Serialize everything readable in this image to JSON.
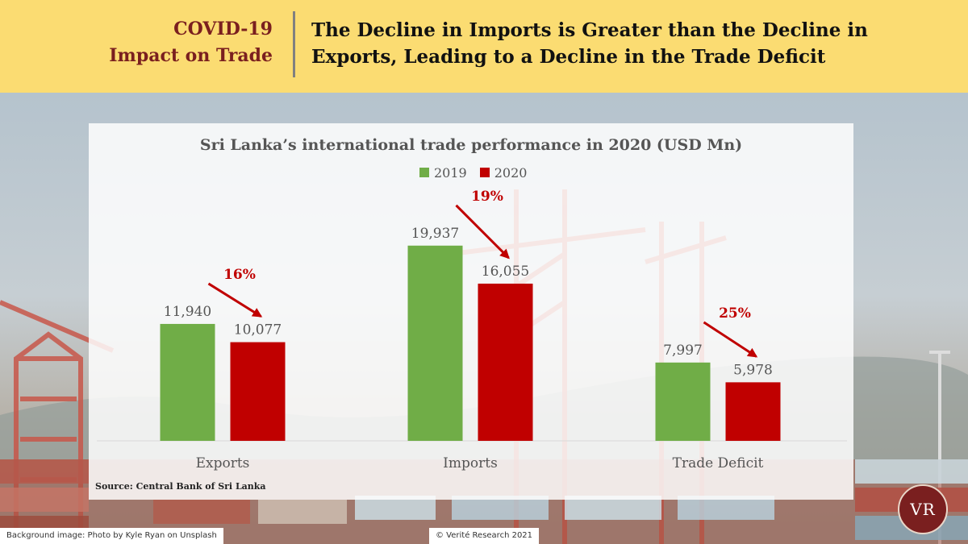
{
  "header": {
    "tag_line1": "COVID-19",
    "tag_line2": "Impact on Trade",
    "headline": "The Decline in Imports is Greater than the Decline in Exports, Leading to a Decline in the Trade Deficit"
  },
  "chart_data": {
    "type": "bar",
    "title": "Sri Lanka’s international trade performance in 2020 (USD Mn)",
    "categories": [
      "Exports",
      "Imports",
      "Trade Deficit"
    ],
    "series": [
      {
        "name": "2019",
        "values": [
          11940,
          19937,
          7997
        ],
        "labels": [
          "11,940",
          "19,937",
          "7,997"
        ],
        "color": "#70ad47"
      },
      {
        "name": "2020",
        "values": [
          10077,
          16055,
          5978
        ],
        "labels": [
          "10,077",
          "16,055",
          "5,978"
        ],
        "color": "#c00000"
      }
    ],
    "annotations": [
      "16%",
      "19%",
      "25%"
    ],
    "annotation_color": "#c00000",
    "ylim": [
      0,
      20000
    ],
    "grid": false,
    "legend_position": "top"
  },
  "source": "Source: Central Bank of Sri Lanka",
  "footer": {
    "background_credit": "Background image: Photo by Kyle Ryan on Unsplash",
    "copyright": "© Verité Research 2021",
    "logo_text": "VR"
  }
}
